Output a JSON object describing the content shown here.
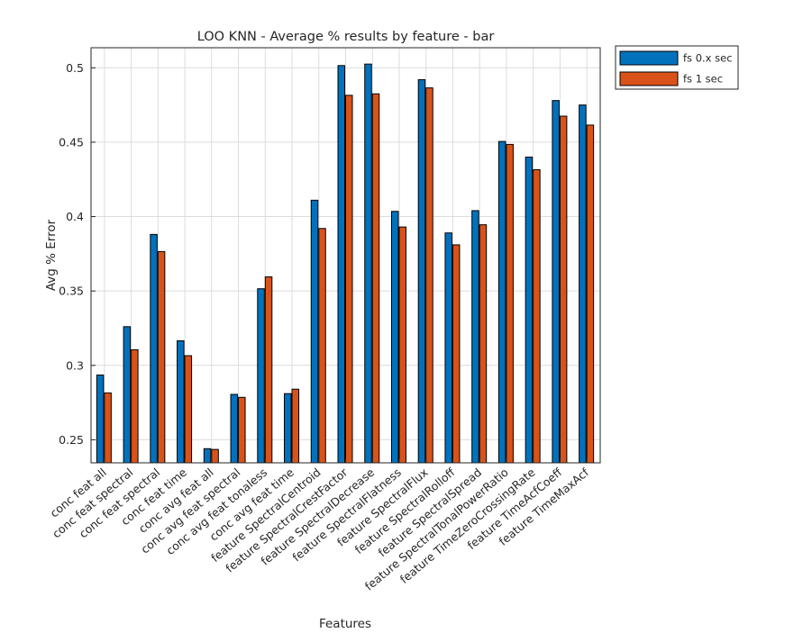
{
  "chart_data": {
    "type": "bar",
    "title": "LOO KNN - Average % results by feature - bar",
    "xlabel": "Features",
    "ylabel": "Avg % Error",
    "ylim": [
      0.2345,
      0.5135
    ],
    "yticks": [
      "0.25",
      "0.3",
      "0.35",
      "0.4",
      "0.45",
      "0.5"
    ],
    "grid": true,
    "legend_position": "outside-top-right",
    "categories": [
      "conc feat all",
      "conc feat spectral",
      "conc feat spectral",
      "conc feat time",
      "conc avg feat all",
      "conc avg feat spectral",
      "conc avg feat tonaless",
      "conc avg feat time",
      "feature SpectralCentroid",
      "feature SpectralCrestFactor",
      "feature SpectralDecrease",
      "feature SpectralFlatness",
      "feature SpectralFlux",
      "feature SpectralRolloff",
      "feature SpectralSpread",
      "feature SpectralTonalPowerRatio",
      "feature TimeZeroCrossingRate",
      "feature TimeAcfCoeff",
      "feature TimeMaxAcf"
    ],
    "series": [
      {
        "name": "fs 0.x sec",
        "color": "#0072BD",
        "values": [
          0.2935,
          0.326,
          0.388,
          0.3165,
          0.244,
          0.2805,
          0.3515,
          0.281,
          0.411,
          0.5015,
          0.5025,
          0.4035,
          0.492,
          0.389,
          0.404,
          0.4505,
          0.44,
          0.478,
          0.475
        ]
      },
      {
        "name": "fs 1 sec",
        "color": "#D95319",
        "values": [
          0.2815,
          0.3105,
          0.3765,
          0.3065,
          0.2435,
          0.2785,
          0.3595,
          0.284,
          0.392,
          0.4815,
          0.4825,
          0.393,
          0.4865,
          0.381,
          0.3945,
          0.4485,
          0.4315,
          0.4675,
          0.4615
        ]
      }
    ]
  }
}
